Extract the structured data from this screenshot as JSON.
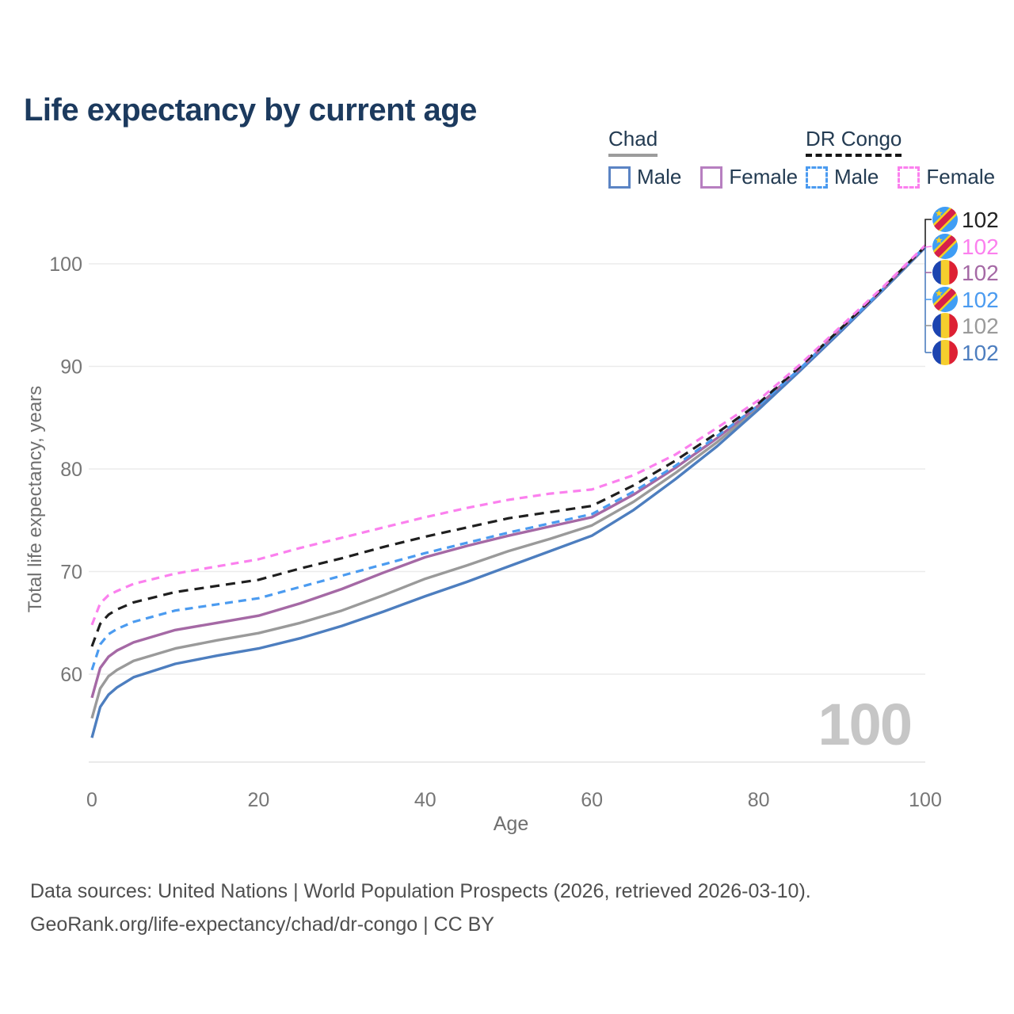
{
  "title": "Life expectancy by current age",
  "watermark": "100",
  "legend": {
    "groups": [
      {
        "label": "Chad",
        "line_style": "solid",
        "underline_color": "#9c9c9c",
        "items": [
          {
            "label": "Male",
            "color": "#5b84c4",
            "dashed": false
          },
          {
            "label": "Female",
            "color": "#b77fc0",
            "dashed": false
          }
        ]
      },
      {
        "label": "DR Congo",
        "line_style": "dashed",
        "underline_color": "#151515",
        "items": [
          {
            "label": "Male",
            "color": "#4b9bf0",
            "dashed": true
          },
          {
            "label": "Female",
            "color": "#fb80ee",
            "dashed": true
          }
        ]
      }
    ]
  },
  "axes": {
    "x_label": "Age",
    "y_label": "Total life expectancy, years",
    "x_ticks": [
      0,
      20,
      40,
      60,
      80,
      100
    ],
    "y_ticks": [
      60,
      70,
      80,
      90,
      100
    ]
  },
  "end_labels": [
    {
      "value": "102",
      "flag": "dr-congo",
      "color": "#222222",
      "series": "DR Congo"
    },
    {
      "value": "102",
      "flag": "dr-congo",
      "color": "#fb80ee",
      "series": "DR Congo Female"
    },
    {
      "value": "102",
      "flag": "chad",
      "color": "#a569a5",
      "series": "Chad Female"
    },
    {
      "value": "102",
      "flag": "dr-congo",
      "color": "#4b9bf0",
      "series": "DR Congo Male"
    },
    {
      "value": "102",
      "flag": "chad",
      "color": "#9a9a9a",
      "series": "Chad"
    },
    {
      "value": "102",
      "flag": "chad",
      "color": "#4d7ebf",
      "series": "Chad Male"
    }
  ],
  "flag_colors": {
    "chad": {
      "blue": "#1c44b0",
      "yellow": "#f5ce2e",
      "red": "#dd2033"
    },
    "dr_congo": {
      "field": "#3f9df4",
      "stripe": "#d6204a",
      "accent": "#f6d020"
    }
  },
  "footer": {
    "line1": "Data sources: United Nations | World Population Prospects (2026, retrieved 2026-03-10).",
    "line2": "GeoRank.org/life-expectancy/chad/dr-congo | CC BY"
  },
  "chart_data": {
    "type": "line",
    "title": "Life expectancy by current age",
    "xlabel": "Age",
    "ylabel": "Total life expectancy, years",
    "xlim": [
      0,
      100
    ],
    "ylim": [
      53,
      103
    ],
    "grid": true,
    "legend_position": "top-right",
    "x": [
      0,
      1,
      2,
      3,
      5,
      10,
      15,
      20,
      25,
      30,
      35,
      40,
      45,
      50,
      55,
      60,
      65,
      70,
      75,
      80,
      85,
      90,
      95,
      100
    ],
    "series": [
      {
        "name": "Chad Male",
        "country": "chad",
        "line": "solid",
        "color": "#4d7ebf",
        "values": [
          53.8,
          56.8,
          58.0,
          58.7,
          59.7,
          61.0,
          61.8,
          62.5,
          63.5,
          64.7,
          66.1,
          67.6,
          69.0,
          70.5,
          72.0,
          73.5,
          76.0,
          79.0,
          82.2,
          85.8,
          89.6,
          93.5,
          97.5,
          101.6
        ]
      },
      {
        "name": "Chad Female",
        "country": "chad",
        "line": "solid",
        "color": "#a569a5",
        "values": [
          57.7,
          60.6,
          61.7,
          62.3,
          63.1,
          64.3,
          65.0,
          65.7,
          66.9,
          68.3,
          69.9,
          71.4,
          72.5,
          73.5,
          74.4,
          75.3,
          77.5,
          80.1,
          83.0,
          86.2,
          89.8,
          93.7,
          97.6,
          101.7
        ]
      },
      {
        "name": "Chad (both sexes)",
        "country": "chad",
        "line": "solid",
        "color": "#9a9a9a",
        "values": [
          55.7,
          58.6,
          59.8,
          60.4,
          61.3,
          62.5,
          63.3,
          64.0,
          65.0,
          66.2,
          67.7,
          69.3,
          70.6,
          72.0,
          73.2,
          74.5,
          76.8,
          79.6,
          82.6,
          86.0,
          89.7,
          93.6,
          97.5,
          101.6
        ]
      },
      {
        "name": "DR Congo Male",
        "country": "dr-congo",
        "line": "dashed",
        "color": "#4b9bf0",
        "values": [
          60.4,
          62.9,
          63.9,
          64.4,
          65.1,
          66.2,
          66.8,
          67.4,
          68.5,
          69.6,
          70.7,
          71.8,
          72.8,
          73.8,
          74.7,
          75.6,
          77.8,
          80.3,
          83.2,
          86.2,
          89.8,
          93.7,
          97.6,
          101.7
        ]
      },
      {
        "name": "DR Congo Female",
        "country": "dr-congo",
        "line": "dashed",
        "color": "#fb80ee",
        "values": [
          64.8,
          66.9,
          67.7,
          68.1,
          68.8,
          69.8,
          70.5,
          71.2,
          72.3,
          73.3,
          74.3,
          75.3,
          76.2,
          77.0,
          77.6,
          78.0,
          79.4,
          81.4,
          84.0,
          86.7,
          90.2,
          94.0,
          97.8,
          101.8
        ]
      },
      {
        "name": "DR Congo (both sexes)",
        "country": "dr-congo",
        "line": "dashed",
        "color": "#1f1f1f",
        "values": [
          62.7,
          64.9,
          65.8,
          66.3,
          67.0,
          68.0,
          68.6,
          69.2,
          70.3,
          71.3,
          72.4,
          73.4,
          74.3,
          75.2,
          75.8,
          76.4,
          78.4,
          80.8,
          83.5,
          86.4,
          90.0,
          93.8,
          97.7,
          101.7
        ]
      }
    ]
  }
}
